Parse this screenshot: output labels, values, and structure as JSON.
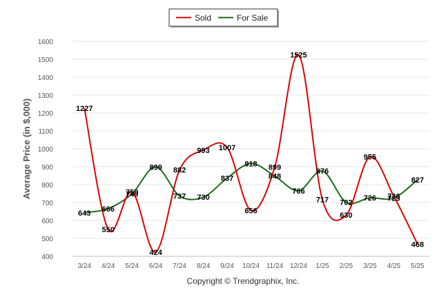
{
  "chart_data": {
    "type": "line",
    "categories": [
      "3/24",
      "4/24",
      "5/24",
      "6/24",
      "7/24",
      "8/24",
      "9/24",
      "10/24",
      "11/24",
      "12/24",
      "1/25",
      "2/25",
      "3/25",
      "4/25",
      "5/25"
    ],
    "series": [
      {
        "name": "Sold",
        "color": "#dd0000",
        "values": [
          1227,
          550,
          759,
          424,
          882,
          993,
          1007,
          656,
          899,
          1525,
          717,
          630,
          955,
          736,
          468
        ]
      },
      {
        "name": "For Sale",
        "color": "#1a6b1a",
        "values": [
          643,
          666,
          749,
          899,
          737,
          730,
          837,
          918,
          848,
          766,
          876,
          702,
          726,
          725,
          827
        ]
      }
    ],
    "ylabel": "Average Price (in $,000)",
    "ylim": [
      400,
      1600
    ],
    "yticks": [
      400,
      500,
      600,
      700,
      800,
      900,
      1000,
      1100,
      1200,
      1300,
      1400,
      1500,
      1600
    ],
    "grid": true,
    "legend": "top-center"
  },
  "copyright": "Copyright © Trendgraphix, Inc."
}
